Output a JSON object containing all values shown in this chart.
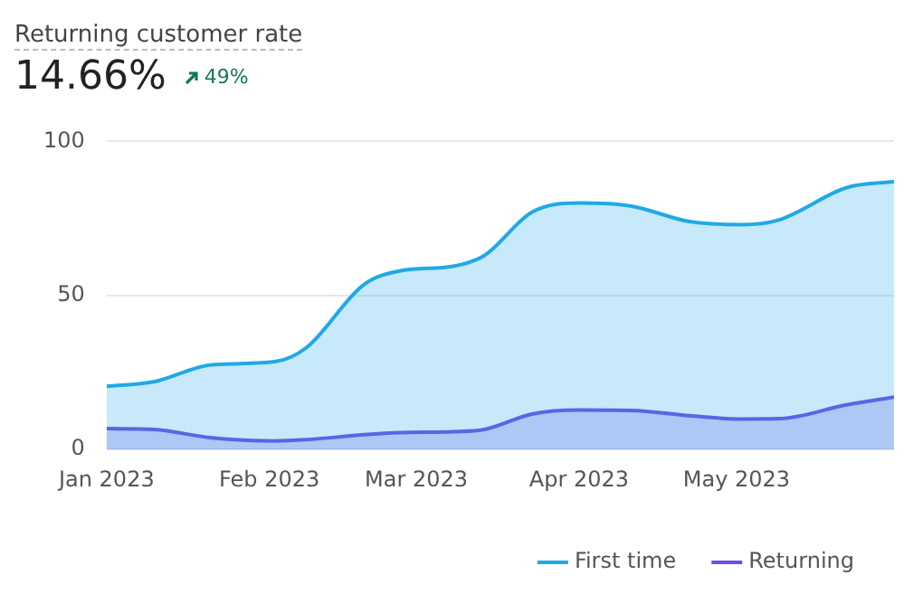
{
  "chart_data": {
    "type": "area",
    "title": "Returning customer rate",
    "subtitle": "14.66%",
    "annotations": [
      "49%"
    ],
    "x": [
      "2023-01-01",
      "2023-01-10",
      "2023-01-21",
      "2023-02-02",
      "2023-02-08",
      "2023-02-19",
      "2023-02-26",
      "2023-03-08",
      "2023-03-14",
      "2023-03-23",
      "2023-04-01",
      "2023-04-11",
      "2023-04-22",
      "2023-05-02",
      "2023-05-09",
      "2023-05-22",
      "2023-05-31"
    ],
    "series": [
      {
        "name": "First time",
        "color": "#1fa9e8",
        "values": [
          20.5,
          22,
          27.5,
          28.5,
          33,
          53.5,
          58,
          59.5,
          63,
          77,
          80,
          79,
          74,
          73,
          74.5,
          85,
          87
        ]
      },
      {
        "name": "Returning",
        "color": "#6e4ee6",
        "values": [
          6.8,
          6.5,
          3.8,
          2.8,
          3.2,
          4.8,
          5.5,
          5.8,
          6.5,
          11.5,
          12.8,
          12.7,
          11,
          9.9,
          10,
          14.5,
          17
        ]
      }
    ],
    "xlim": [
      "2023-01-01",
      "2023-05-31"
    ],
    "xticks": [
      {
        "value": "2023-01-01",
        "label": "Jan 2023"
      },
      {
        "value": "2023-02-01",
        "label": "Feb 2023"
      },
      {
        "value": "2023-03-01",
        "label": "Mar 2023"
      },
      {
        "value": "2023-04-01",
        "label": "Apr 2023"
      },
      {
        "value": "2023-05-01",
        "label": "May 2023"
      }
    ],
    "ylim": [
      0,
      100
    ],
    "yticks": [
      0,
      50,
      100
    ],
    "grid": "y",
    "legend": "bottom right"
  }
}
